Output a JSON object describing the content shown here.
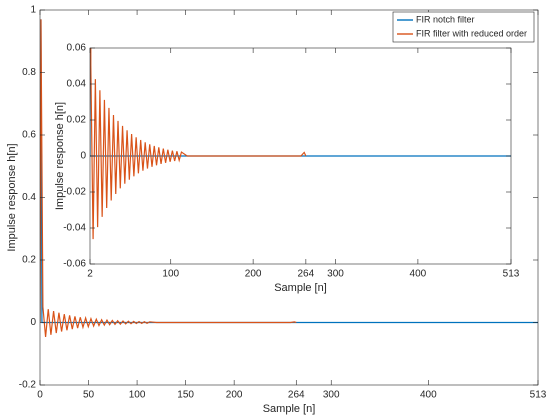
{
  "chart_data": [
    {
      "type": "line",
      "xlabel": "Sample [n]",
      "ylabel": "Impulse response h[n]",
      "xlim": [
        0,
        513
      ],
      "xticks": [
        0,
        50,
        100,
        150,
        200,
        264,
        300,
        400,
        513
      ],
      "ylim": [
        -0.2,
        1
      ],
      "yticks": [
        -0.2,
        0,
        0.2,
        0.4,
        0.6,
        0.8,
        1
      ],
      "legend": "upper right",
      "series": [
        {
          "name": "FIR notch filter",
          "color": "#0072BD",
          "x": [
            0,
            1,
            2,
            264,
            513
          ],
          "values": [
            0,
            0.97,
            0,
            0,
            0
          ]
        },
        {
          "name": "FIR filter with reduced order",
          "color": "#D95319",
          "x": [
            0,
            1,
            3,
            5.75,
            8.5,
            11.25,
            14,
            16.75,
            19.5,
            22.25,
            25,
            27.75,
            30.5,
            33.25,
            36,
            38.75,
            41.5,
            44.25,
            47,
            49.75,
            52.5,
            55.25,
            58,
            60.75,
            63.5,
            66.25,
            69,
            71.75,
            74.5,
            77.25,
            80,
            82.75,
            85.5,
            88.25,
            91,
            93.75,
            96.5,
            99.25,
            102,
            104.75,
            107.5,
            110.25,
            113,
            120,
            258,
            262,
            264
          ],
          "values": [
            0,
            0.97,
            0.05,
            -0.0462,
            0.0427,
            -0.0395,
            0.0365,
            -0.0338,
            0.0312,
            -0.0289,
            0.0267,
            -0.0247,
            0.0228,
            -0.0211,
            0.0195,
            -0.018,
            0.0167,
            -0.0154,
            0.0143,
            -0.0132,
            0.0122,
            -0.0113,
            0.0104,
            -0.0096,
            0.0089,
            -0.0082,
            0.0076,
            -0.007,
            0.0065,
            -0.006,
            0.0056,
            -0.0052,
            0.0048,
            -0.0044,
            0.0041,
            -0.0038,
            0.0035,
            -0.0032,
            0.003,
            -0.0028,
            0.0026,
            -0.0024,
            0.0022,
            0,
            0,
            0.002,
            0
          ]
        }
      ]
    },
    {
      "type": "line",
      "xlabel": "Sample [n]",
      "ylabel": "Impulse response h[n]",
      "xlim": [
        2,
        513
      ],
      "xticks": [
        2,
        100,
        200,
        264,
        300,
        400,
        513
      ],
      "ylim": [
        -0.06,
        0.06
      ],
      "yticks": [
        -0.06,
        -0.04,
        -0.02,
        0,
        0.02,
        0.04,
        0.06
      ]
    }
  ]
}
